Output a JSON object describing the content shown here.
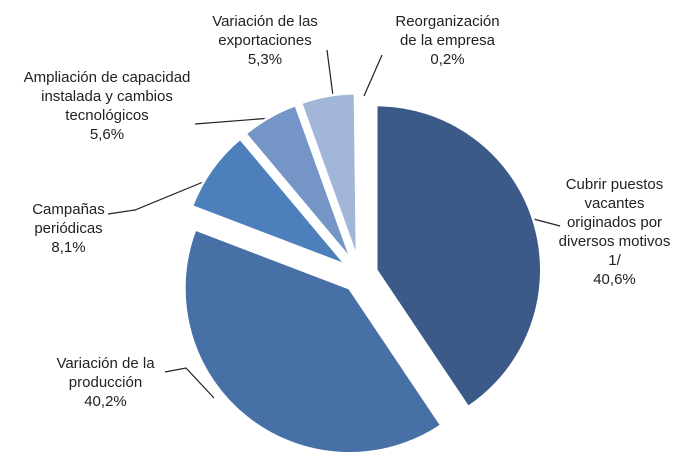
{
  "chart_data": {
    "type": "pie",
    "categories": [
      "Cubrir puestos vacantes originados por diversos motivos 1/",
      "Variación de la producción",
      "Campañas periódicas",
      "Ampliación de capacidad instalada y cambios tecnológicos",
      "Variación de las exportaciones",
      "Reorganización de la empresa"
    ],
    "values": [
      40.6,
      40.2,
      8.1,
      5.6,
      5.3,
      0.2
    ],
    "value_labels": [
      "40,6%",
      "40,2%",
      "8,1%",
      "5,6%",
      "5,3%",
      "0,2%"
    ],
    "colors": [
      "#3b5a88",
      "#4770a6",
      "#4e7fbd",
      "#7595c6",
      "#a2b6d9",
      "#c5d2e8"
    ]
  }
}
